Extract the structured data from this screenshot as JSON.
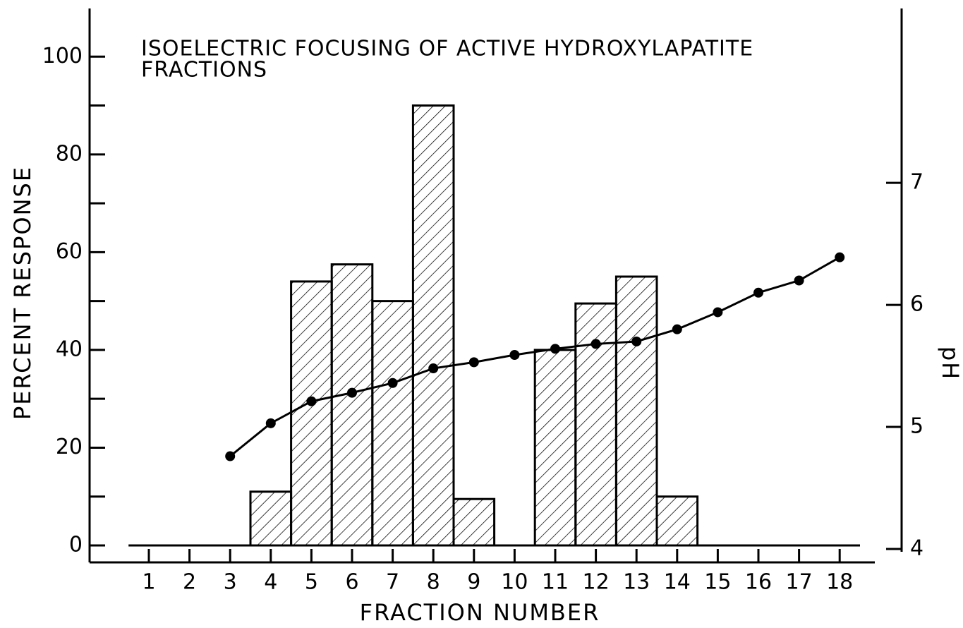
{
  "chart_data": {
    "type": "bar",
    "title": [
      "ISOELECTRIC FOCUSING OF ACTIVE HYDROXYLAPATITE",
      "FRACTIONS"
    ],
    "x_label": "FRACTION NUMBER",
    "y_label": "PERCENT RESPONSE",
    "y2_label": "pH",
    "categories": [
      "1",
      "2",
      "3",
      "4",
      "5",
      "6",
      "7",
      "8",
      "9",
      "10",
      "11",
      "12",
      "13",
      "14",
      "15",
      "16",
      "17",
      "18"
    ],
    "series": [
      {
        "name": "Percent response",
        "type": "bar",
        "color": "#000000",
        "values": [
          0,
          0,
          0,
          11,
          54,
          57.5,
          50,
          90,
          9.5,
          0,
          40,
          49.5,
          55,
          10,
          0,
          0,
          0,
          0
        ]
      },
      {
        "name": "pH",
        "type": "line",
        "axis": "y2",
        "color": "#000000",
        "values": [
          null,
          null,
          4.76,
          5.03,
          5.21,
          5.28,
          5.36,
          5.48,
          5.53,
          5.59,
          5.64,
          5.68,
          5.7,
          5.8,
          5.94,
          6.1,
          6.2,
          6.39
        ]
      }
    ],
    "ylim": [
      0,
      110
    ],
    "yticks": [
      0,
      20,
      40,
      60,
      80,
      100
    ],
    "yticks_minor": [
      10,
      30,
      50,
      70,
      90
    ],
    "y2lim": [
      4,
      8.4
    ],
    "y2ticks": [
      4,
      5,
      6,
      7
    ],
    "hatch": true,
    "grid": false
  }
}
